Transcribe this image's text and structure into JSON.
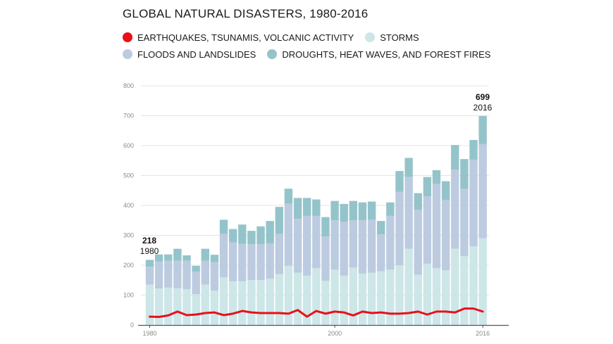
{
  "title": "GLOBAL NATURAL DISASTERS, 1980-2016",
  "legend": [
    {
      "label": "EARTHQUAKES, TSUNAMIS, VOLCANIC ACTIVITY",
      "color": "#e8101a"
    },
    {
      "label": "STORMS",
      "color": "#cde6e8"
    },
    {
      "label": "FLOODS AND LANDSLIDES",
      "color": "#bccbe0"
    },
    {
      "label": "DROUGHTS, HEAT WAVES, AND FOREST FIRES",
      "color": "#94c4ca"
    }
  ],
  "annotations": {
    "start": {
      "value": "218",
      "year": "1980"
    },
    "end": {
      "value": "699",
      "year": "2016"
    }
  },
  "chart_data": {
    "type": "bar",
    "stacked": true,
    "title": "GLOBAL NATURAL DISASTERS, 1980-2016",
    "xlabel": "",
    "ylabel": "",
    "ylim": [
      0,
      800
    ],
    "yticks": [
      "0",
      "100",
      "200",
      "300",
      "400",
      "500",
      "600",
      "700",
      "800"
    ],
    "xticks": [
      "1980",
      "2000",
      "2016"
    ],
    "grid": true,
    "legend_position": "top",
    "categories": [
      1980,
      1981,
      1982,
      1983,
      1984,
      1985,
      1986,
      1987,
      1988,
      1989,
      1990,
      1991,
      1992,
      1993,
      1994,
      1995,
      1996,
      1997,
      1998,
      1999,
      2000,
      2001,
      2002,
      2003,
      2004,
      2005,
      2006,
      2007,
      2008,
      2009,
      2010,
      2011,
      2012,
      2013,
      2014,
      2015,
      2016
    ],
    "series": [
      {
        "name": "STORMS",
        "color": "#cde6e8",
        "values": [
          135,
          122,
          125,
          123,
          120,
          103,
          135,
          115,
          160,
          146,
          146,
          150,
          150,
          155,
          170,
          198,
          175,
          165,
          190,
          148,
          185,
          165,
          192,
          172,
          175,
          180,
          185,
          200,
          255,
          168,
          205,
          190,
          183,
          255,
          230,
          263,
          290
        ]
      },
      {
        "name": "FLOODS AND LANDSLIDES",
        "color": "#bccbe0",
        "values": [
          60,
          90,
          90,
          92,
          95,
          75,
          80,
          95,
          145,
          130,
          125,
          120,
          120,
          118,
          135,
          208,
          180,
          200,
          175,
          148,
          165,
          180,
          158,
          178,
          178,
          123,
          180,
          245,
          240,
          217,
          225,
          282,
          235,
          265,
          225,
          290,
          315
        ]
      },
      {
        "name": "DROUGHTS, HEAT WAVES, AND FOREST FIRES",
        "color": "#94c4ca",
        "values": [
          23,
          24,
          21,
          40,
          18,
          20,
          40,
          25,
          47,
          45,
          65,
          45,
          60,
          75,
          90,
          50,
          70,
          60,
          55,
          65,
          65,
          60,
          65,
          60,
          60,
          45,
          45,
          70,
          64,
          56,
          65,
          46,
          63,
          82,
          100,
          66,
          94
        ]
      },
      {
        "name": "EARTHQUAKES, TSUNAMIS, VOLCANIC ACTIVITY",
        "color": "#e8101a",
        "render": "line",
        "values": [
          28,
          27,
          32,
          45,
          33,
          35,
          40,
          42,
          33,
          38,
          47,
          42,
          40,
          40,
          40,
          38,
          50,
          28,
          47,
          38,
          45,
          42,
          32,
          45,
          40,
          42,
          38,
          38,
          40,
          45,
          35,
          45,
          45,
          42,
          55,
          55,
          45
        ]
      }
    ]
  }
}
